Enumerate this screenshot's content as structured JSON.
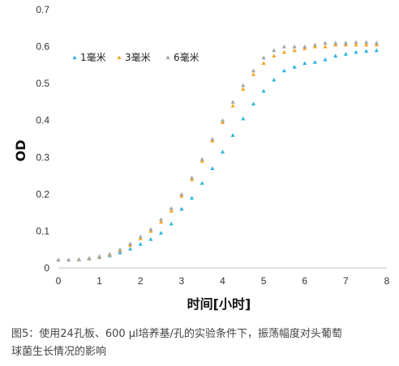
{
  "chart_data": {
    "type": "scatter",
    "xlabel": "时间[小时]",
    "ylabel": "OD",
    "xlim": [
      0,
      8
    ],
    "ylim": [
      0,
      0.7
    ],
    "x_ticks": [
      "0",
      "1",
      "2",
      "3",
      "4",
      "5",
      "6",
      "7",
      "8"
    ],
    "y_ticks": [
      "0",
      "0.1",
      "0.2",
      "0.3",
      "0.4",
      "0.5",
      "0.6",
      "0.7"
    ],
    "grid": false,
    "legend_position": "top-left",
    "series": [
      {
        "name": "1毫米",
        "color": "#2fb5e0",
        "points": [
          [
            0.0,
            0.022
          ],
          [
            0.25,
            0.022
          ],
          [
            0.5,
            0.023
          ],
          [
            0.75,
            0.025
          ],
          [
            1.0,
            0.029
          ],
          [
            1.25,
            0.034
          ],
          [
            1.5,
            0.042
          ],
          [
            1.75,
            0.052
          ],
          [
            2.0,
            0.065
          ],
          [
            2.25,
            0.078
          ],
          [
            2.5,
            0.095
          ],
          [
            2.75,
            0.12
          ],
          [
            3.0,
            0.16
          ],
          [
            3.25,
            0.19
          ],
          [
            3.5,
            0.23
          ],
          [
            3.75,
            0.27
          ],
          [
            4.0,
            0.315
          ],
          [
            4.25,
            0.36
          ],
          [
            4.5,
            0.405
          ],
          [
            4.75,
            0.445
          ],
          [
            5.0,
            0.48
          ],
          [
            5.25,
            0.51
          ],
          [
            5.5,
            0.535
          ],
          [
            5.75,
            0.545
          ],
          [
            6.0,
            0.555
          ],
          [
            6.25,
            0.558
          ],
          [
            6.5,
            0.565
          ],
          [
            6.75,
            0.575
          ],
          [
            7.0,
            0.58
          ],
          [
            7.25,
            0.585
          ],
          [
            7.5,
            0.588
          ],
          [
            7.75,
            0.59
          ]
        ]
      },
      {
        "name": "3毫米",
        "color": "#f5a623",
        "points": [
          [
            0.0,
            0.022
          ],
          [
            0.25,
            0.022
          ],
          [
            0.5,
            0.023
          ],
          [
            0.75,
            0.026
          ],
          [
            1.0,
            0.03
          ],
          [
            1.25,
            0.036
          ],
          [
            1.5,
            0.048
          ],
          [
            1.75,
            0.062
          ],
          [
            2.0,
            0.08
          ],
          [
            2.25,
            0.1
          ],
          [
            2.5,
            0.125
          ],
          [
            2.75,
            0.155
          ],
          [
            3.0,
            0.195
          ],
          [
            3.25,
            0.24
          ],
          [
            3.5,
            0.29
          ],
          [
            3.75,
            0.345
          ],
          [
            4.0,
            0.395
          ],
          [
            4.25,
            0.44
          ],
          [
            4.5,
            0.485
          ],
          [
            4.75,
            0.525
          ],
          [
            5.0,
            0.555
          ],
          [
            5.25,
            0.575
          ],
          [
            5.5,
            0.585
          ],
          [
            5.75,
            0.59
          ],
          [
            6.0,
            0.595
          ],
          [
            6.25,
            0.6
          ],
          [
            6.5,
            0.6
          ],
          [
            6.75,
            0.605
          ],
          [
            7.0,
            0.605
          ],
          [
            7.25,
            0.605
          ],
          [
            7.5,
            0.605
          ],
          [
            7.75,
            0.605
          ]
        ]
      },
      {
        "name": "6毫米",
        "color": "#a6a6a6",
        "points": [
          [
            0.0,
            0.022
          ],
          [
            0.25,
            0.022
          ],
          [
            0.5,
            0.024
          ],
          [
            0.75,
            0.027
          ],
          [
            1.0,
            0.032
          ],
          [
            1.25,
            0.038
          ],
          [
            1.5,
            0.05
          ],
          [
            1.75,
            0.066
          ],
          [
            2.0,
            0.085
          ],
          [
            2.25,
            0.105
          ],
          [
            2.5,
            0.132
          ],
          [
            2.75,
            0.162
          ],
          [
            3.0,
            0.2
          ],
          [
            3.25,
            0.245
          ],
          [
            3.5,
            0.295
          ],
          [
            3.75,
            0.35
          ],
          [
            4.0,
            0.4
          ],
          [
            4.25,
            0.45
          ],
          [
            4.5,
            0.495
          ],
          [
            4.75,
            0.535
          ],
          [
            5.0,
            0.57
          ],
          [
            5.25,
            0.59
          ],
          [
            5.5,
            0.6
          ],
          [
            5.75,
            0.6
          ],
          [
            6.0,
            0.6
          ],
          [
            6.25,
            0.605
          ],
          [
            6.5,
            0.61
          ],
          [
            6.75,
            0.61
          ],
          [
            7.0,
            0.61
          ],
          [
            7.25,
            0.612
          ],
          [
            7.5,
            0.612
          ],
          [
            7.75,
            0.61
          ]
        ]
      }
    ]
  },
  "caption": {
    "line1": "图5：使用24孔板、600 μl培养基/孔的实验条件下，振荡幅度对头葡萄",
    "line2": "球菌生长情况的影响"
  }
}
